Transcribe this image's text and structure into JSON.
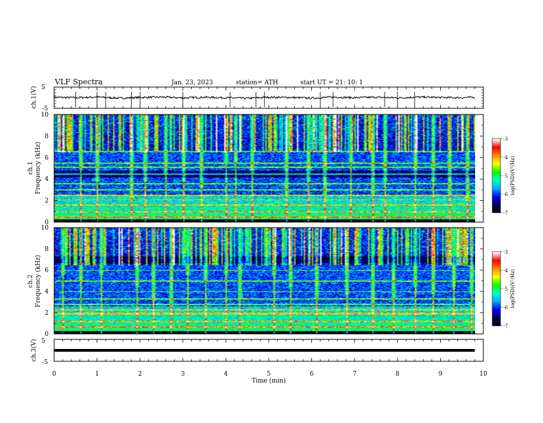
{
  "header": {
    "title": "VLF  Spectra",
    "date": "Jan. 23, 2023",
    "station": "station= ATH",
    "start": "start  UT  =    21: 10: 1"
  },
  "colors": {
    "colormap": [
      "#000000",
      "#00004a",
      "#0000ff",
      "#00aaff",
      "#00ffcc",
      "#00ff00",
      "#ffff00",
      "#ff8800",
      "#ff0000",
      "#ffffff"
    ],
    "waveform": "#000000",
    "axis": "#000000"
  },
  "chart_data": [
    {
      "type": "line",
      "name": "ch1-waveform",
      "ylabel": "ch.1(V)",
      "ylim": [
        -5,
        5
      ],
      "yticks": [
        "5",
        "-5"
      ],
      "xlim": [
        0,
        10
      ],
      "x": [
        0,
        0.5,
        1,
        1.5,
        2,
        2.5,
        3,
        3.5,
        4,
        4.5,
        5,
        5.5,
        6,
        6.5,
        7,
        7.5,
        8,
        8.5,
        9,
        9.5,
        9.8
      ],
      "y": [
        0.2,
        0.0,
        0.3,
        -0.2,
        0.1,
        0.3,
        -0.1,
        0.2,
        0.0,
        -0.3,
        0.2,
        0.1,
        -0.2,
        0.3,
        0.0,
        0.2,
        -0.1,
        0.3,
        0.1,
        0.0,
        0.2
      ]
    },
    {
      "type": "heatmap",
      "name": "ch1-spectrogram",
      "ylabel": "ch.1\nFrequency  (kHz)",
      "ylabel_line1": "ch.1",
      "ylabel_line2": "Frequency  (kHz)",
      "xlim": [
        0,
        9.8
      ],
      "ylim": [
        0,
        10
      ],
      "yticks": [
        "0",
        "2",
        "4",
        "6",
        "8",
        "10"
      ],
      "colorbar": {
        "label": "log(PSD)(V²/Hz)",
        "range": [
          -7,
          -3
        ],
        "ticks": [
          "-3",
          "-4",
          "-5",
          "-6",
          "-7"
        ]
      },
      "bands_khz": [
        0.5,
        1.0,
        1.6,
        2.1,
        2.5,
        3.0,
        3.6,
        4.5,
        5.1,
        5.5,
        6.6
      ],
      "sferic_times_min": [
        0.6,
        1.0,
        1.8,
        2.1,
        2.6,
        3.0,
        3.4,
        4.0,
        4.2,
        4.6,
        5.4,
        5.9,
        6.3,
        6.9,
        7.4,
        7.7,
        8.4,
        8.8,
        9.2,
        9.6
      ]
    },
    {
      "type": "heatmap",
      "name": "ch2-spectrogram",
      "ylabel": "ch.2\nFrequency  (kHz)",
      "ylabel_line1": "ch.2",
      "ylabel_line2": "Frequency  (kHz)",
      "xlim": [
        0,
        9.8
      ],
      "ylim": [
        0,
        10
      ],
      "yticks": [
        "0",
        "2",
        "4",
        "6",
        "8",
        "10"
      ],
      "colorbar": {
        "label": "log(PSD)(V²/Hz)",
        "range": [
          -7,
          -3
        ],
        "ticks": [
          "-3",
          "-4",
          "-5",
          "-6",
          "-7"
        ]
      },
      "bands_khz": [
        0.7,
        1.2,
        1.9,
        2.0,
        2.3,
        2.8,
        3.3,
        4.0,
        5.0,
        6.0
      ],
      "sferic_times_min": [
        0.2,
        0.6,
        1.1,
        1.9,
        2.3,
        2.7,
        3.1,
        3.5,
        4.0,
        4.3,
        5.1,
        5.5,
        6.1,
        6.8,
        7.4,
        7.9,
        8.4,
        8.8,
        9.3,
        9.7
      ]
    },
    {
      "type": "line",
      "name": "ch3-waveform",
      "ylabel": "ch.3(V)",
      "ylim": [
        -5,
        5
      ],
      "yticks": [
        "5",
        "-5"
      ],
      "xlim": [
        0,
        10
      ],
      "x": [
        0,
        9.8
      ],
      "y": [
        0,
        0
      ]
    }
  ],
  "xaxis": {
    "label": "Time  (min)",
    "ticks": [
      "0",
      "1",
      "2",
      "3",
      "4",
      "5",
      "6",
      "7",
      "8",
      "9",
      "10"
    ]
  }
}
